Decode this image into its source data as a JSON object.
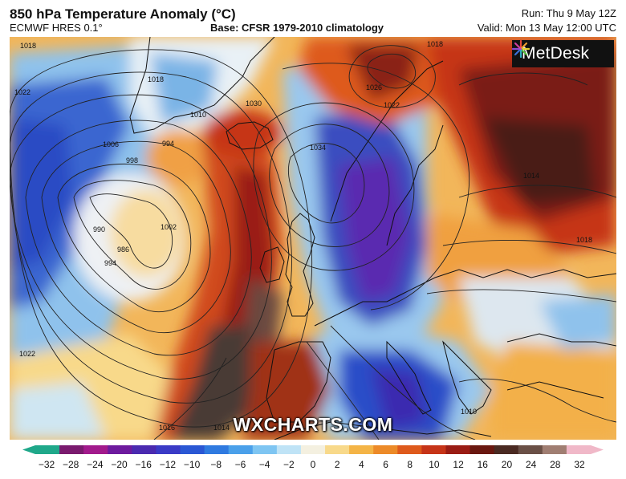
{
  "header": {
    "title": "850 hPa Temperature Anomaly (°C)",
    "model": "ECMWF HRES 0.1°",
    "base": "Base: CFSR 1979-2010 climatology",
    "run": "Run: Thu 9 May 12Z",
    "valid": "Valid: Mon 13 May 12:00 UTC"
  },
  "logo": {
    "text": "MetDesk",
    "icon": "metdesk-star-icon"
  },
  "watermark": "WXCHARTS.COM",
  "isobar_labels": [
    "1018",
    "1022",
    "1018",
    "1010",
    "994",
    "1006",
    "998",
    "990",
    "986",
    "1002",
    "994",
    "1030",
    "1034",
    "1022",
    "1026",
    "1014",
    "1018",
    "1022",
    "1016",
    "1014",
    "1010",
    "1018"
  ],
  "colorbar": {
    "ticks": [
      "−32",
      "−28",
      "−24",
      "−20",
      "−16",
      "−12",
      "−10",
      "−8",
      "−6",
      "−4",
      "−2",
      "0",
      "2",
      "4",
      "6",
      "8",
      "10",
      "12",
      "16",
      "20",
      "24",
      "28",
      "32"
    ],
    "colors": [
      "#1fa88a",
      "#7a1a6e",
      "#a21a8c",
      "#6d1a9e",
      "#4a2ab0",
      "#3a3ac6",
      "#2a57d4",
      "#2f7ae0",
      "#4aa0ea",
      "#7ec5f2",
      "#bfe3f6",
      "#f4f0e0",
      "#f8d98a",
      "#f4b446",
      "#ec8a28",
      "#de5a1c",
      "#c63418",
      "#9a1c14",
      "#6a1810",
      "#4a2a22",
      "#6a5046",
      "#a07e72",
      "#f0b8c8"
    ]
  }
}
